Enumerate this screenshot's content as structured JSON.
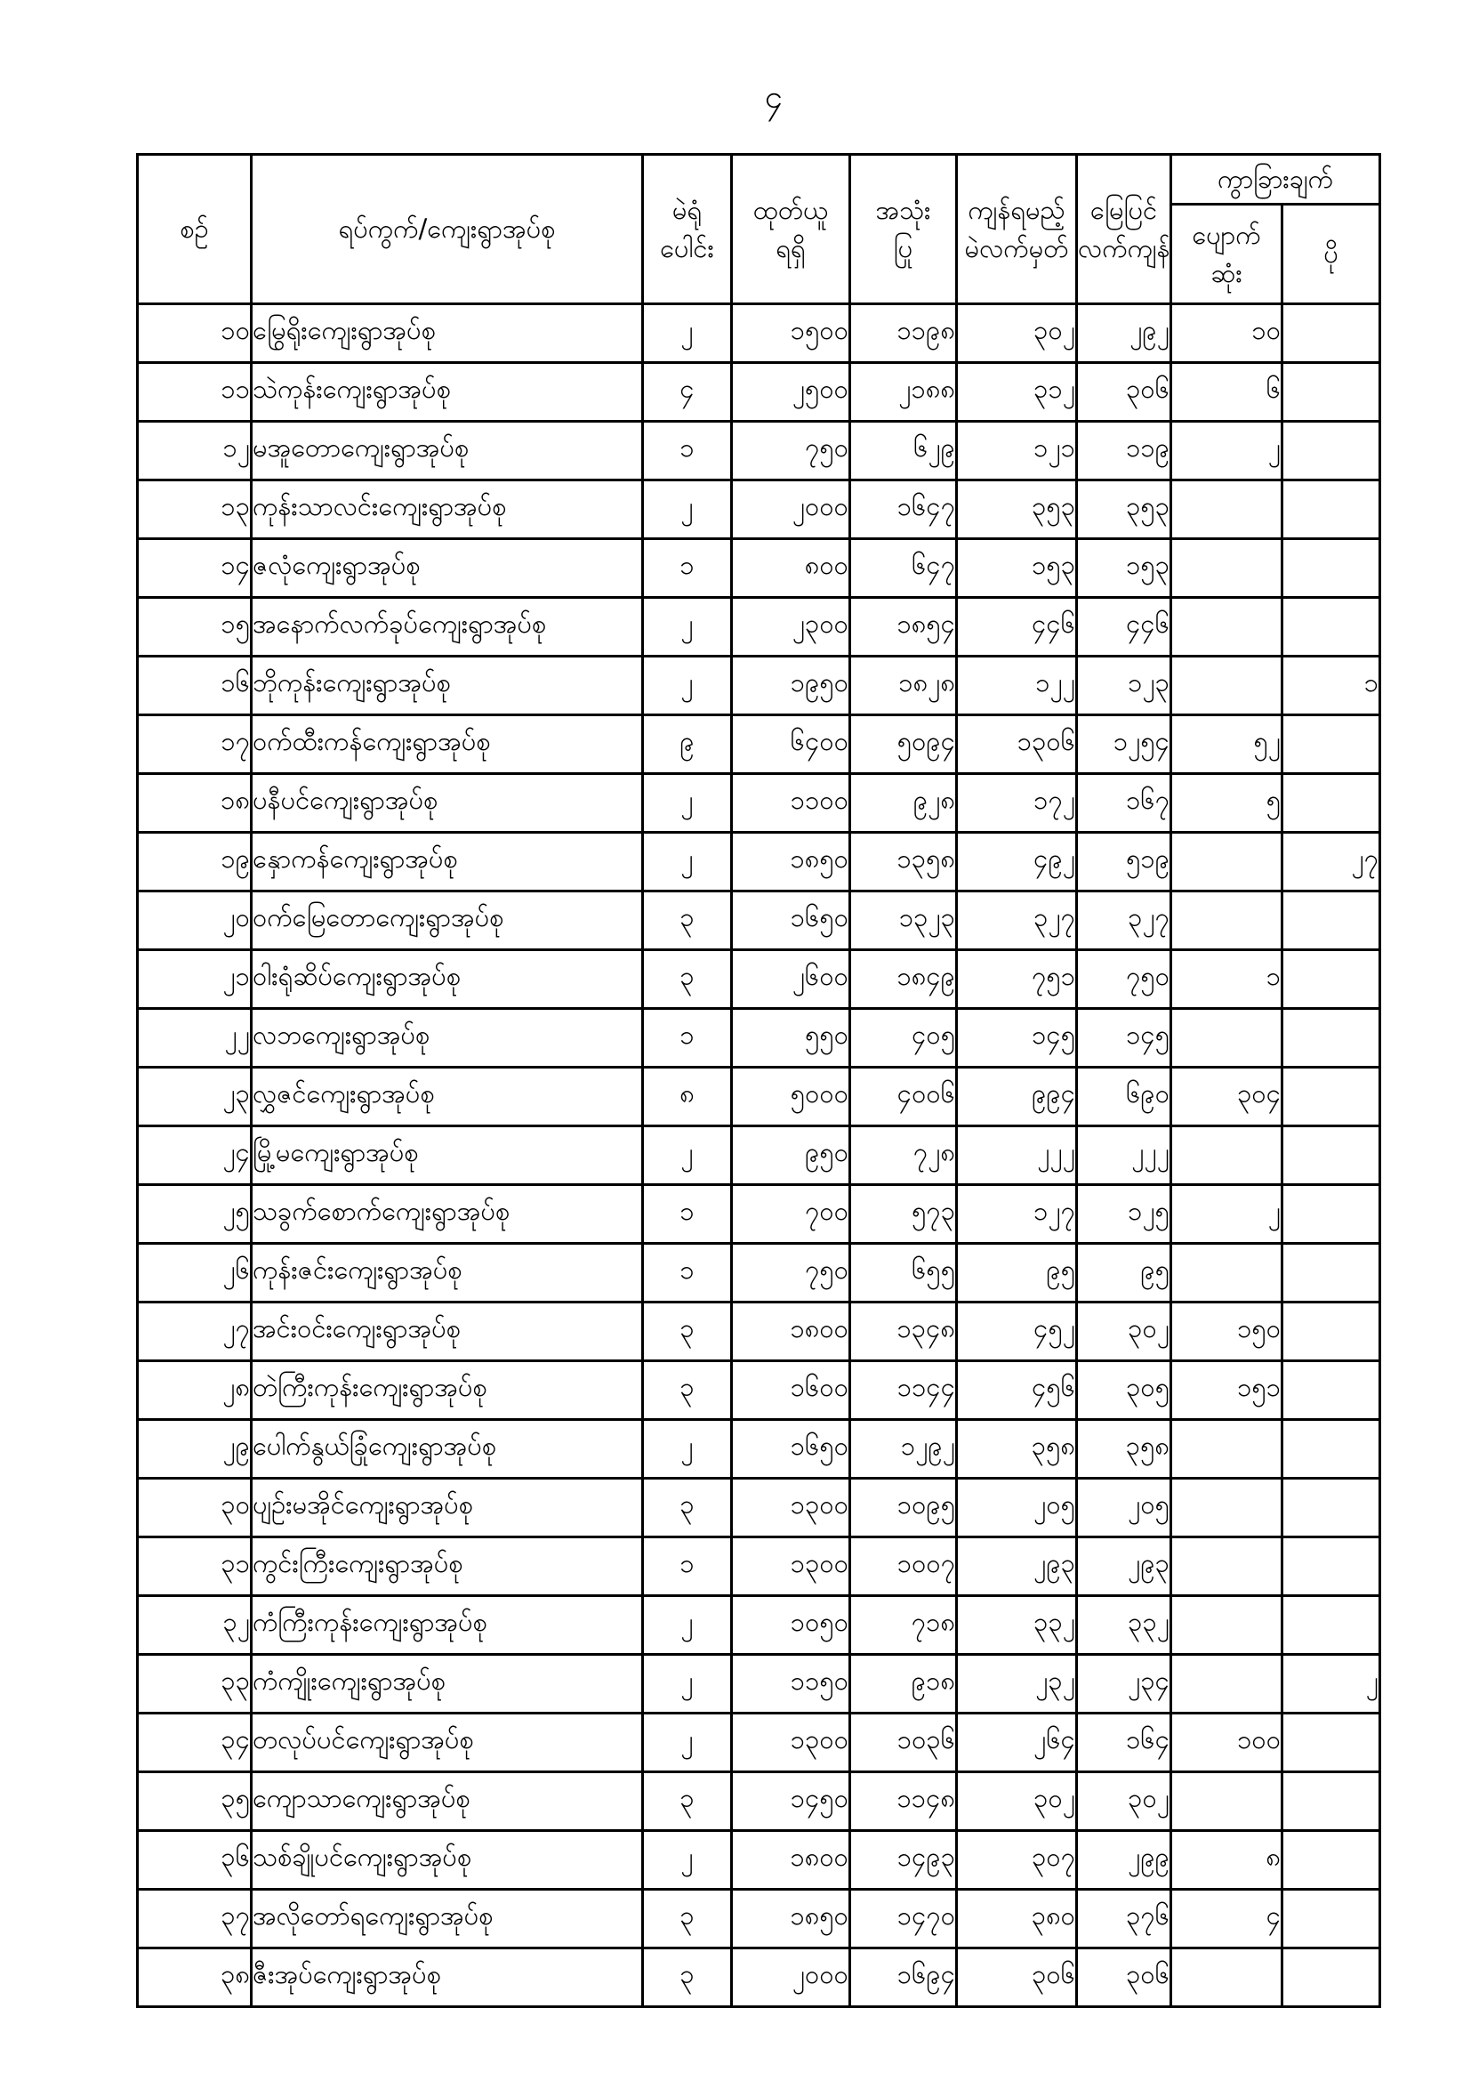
{
  "page_number": "၄",
  "table": {
    "header": {
      "serial": "စဉ်",
      "ward_village": "ရပ်ကွက်/ကျေးရွာအုပ်စု",
      "polling_stations_total": "မဲရုံ\nပေါင်း",
      "ballots_received": "ထုတ်ယူ\nရရှိ",
      "ballots_used": "အသုံး\nပြု",
      "ballots_should_remain": "ကျန်ရမည့်\nမဲလက်မှတ်",
      "ground_balance": "မြေပြင်\nလက်ကျန်",
      "difference": "ကွာခြားချက်",
      "difference_lost": "ပျောက်\nဆုံး",
      "difference_extra": "ပို"
    },
    "rows": [
      {
        "serial": "၁၀",
        "name": "မြွေရိုးကျေးရွာအုပ်စု",
        "stations": "၂",
        "received": "၁၅၀၀",
        "used": "၁၁၉၈",
        "should_remain": "၃၀၂",
        "ground": "၂၉၂",
        "lost": "၁၀",
        "extra": ""
      },
      {
        "serial": "၁၁",
        "name": "သဲကုန်းကျေးရွာအုပ်စု",
        "stations": "၄",
        "received": "၂၅၀၀",
        "used": "၂၁၈၈",
        "should_remain": "၃၁၂",
        "ground": "၃၀၆",
        "lost": "၆",
        "extra": ""
      },
      {
        "serial": "၁၂",
        "name": "မအူတောကျေးရွာအုပ်စု",
        "stations": "၁",
        "received": "၇၅၀",
        "used": "၆၂၉",
        "should_remain": "၁၂၁",
        "ground": "၁၁၉",
        "lost": "၂",
        "extra": ""
      },
      {
        "serial": "၁၃",
        "name": "ကုန်းသာလင်းကျေးရွာအုပ်စု",
        "stations": "၂",
        "received": "၂၀၀၀",
        "used": "၁၆၄၇",
        "should_remain": "၃၅၃",
        "ground": "၃၅၃",
        "lost": "",
        "extra": ""
      },
      {
        "serial": "၁၄",
        "name": "ဇလုံကျေးရွာအုပ်စု",
        "stations": "၁",
        "received": "၈၀၀",
        "used": "၆၄၇",
        "should_remain": "၁၅၃",
        "ground": "၁၅၃",
        "lost": "",
        "extra": ""
      },
      {
        "serial": "၁၅",
        "name": "အနောက်လက်ခုပ်ကျေးရွာအုပ်စု",
        "stations": "၂",
        "received": "၂၃၀၀",
        "used": "၁၈၅၄",
        "should_remain": "၄၄၆",
        "ground": "၄၄၆",
        "lost": "",
        "extra": ""
      },
      {
        "serial": "၁၆",
        "name": "ဘိုကုန်းကျေးရွာအုပ်စု",
        "stations": "၂",
        "received": "၁၉၅၀",
        "used": "၁၈၂၈",
        "should_remain": "၁၂၂",
        "ground": "၁၂၃",
        "lost": "",
        "extra": "၁"
      },
      {
        "serial": "၁၇",
        "name": "ဝက်ထီးကန်ကျေးရွာအုပ်စု",
        "stations": "၉",
        "received": "၆၄၀၀",
        "used": "၅၀၉၄",
        "should_remain": "၁၃၀၆",
        "ground": "၁၂၅၄",
        "lost": "၅၂",
        "extra": ""
      },
      {
        "serial": "၁၈",
        "name": "ပနီပင်ကျေးရွာအုပ်စု",
        "stations": "၂",
        "received": "၁၁၀၀",
        "used": "၉၂၈",
        "should_remain": "၁၇၂",
        "ground": "၁၆၇",
        "lost": "၅",
        "extra": ""
      },
      {
        "serial": "၁၉",
        "name": "နှောကန်ကျေးရွာအုပ်စု",
        "stations": "၂",
        "received": "၁၈၅၀",
        "used": "၁၃၅၈",
        "should_remain": "၄၉၂",
        "ground": "၅၁၉",
        "lost": "",
        "extra": "၂၇"
      },
      {
        "serial": "၂၀",
        "name": "ဝက်မြေတောကျေးရွာအုပ်စု",
        "stations": "၃",
        "received": "၁၆၅၀",
        "used": "၁၃၂၃",
        "should_remain": "၃၂၇",
        "ground": "၃၂၇",
        "lost": "",
        "extra": ""
      },
      {
        "serial": "၂၁",
        "name": "ဝါးရုံဆိပ်ကျေးရွာအုပ်စု",
        "stations": "၃",
        "received": "၂၆၀၀",
        "used": "၁၈၄၉",
        "should_remain": "၇၅၁",
        "ground": "၇၅၀",
        "lost": "၁",
        "extra": ""
      },
      {
        "serial": "၂၂",
        "name": "လဘကျေးရွာအုပ်စု",
        "stations": "၁",
        "received": "၅၅၀",
        "used": "၄၀၅",
        "should_remain": "၁၄၅",
        "ground": "၁၄၅",
        "lost": "",
        "extra": ""
      },
      {
        "serial": "၂၃",
        "name": "လွှဇင်ကျေးရွာအုပ်စု",
        "stations": "၈",
        "received": "၅၀၀၀",
        "used": "၄၀၀၆",
        "should_remain": "၉၉၄",
        "ground": "၆၉၀",
        "lost": "၃၀၄",
        "extra": ""
      },
      {
        "serial": "၂၄",
        "name": "မြို့မကျေးရွာအုပ်စု",
        "stations": "၂",
        "received": "၉၅၀",
        "used": "၇၂၈",
        "should_remain": "၂၂၂",
        "ground": "၂၂၂",
        "lost": "",
        "extra": ""
      },
      {
        "serial": "၂၅",
        "name": "သခွက်စောက်ကျေးရွာအုပ်စု",
        "stations": "၁",
        "received": "၇၀၀",
        "used": "၅၇၃",
        "should_remain": "၁၂၇",
        "ground": "၁၂၅",
        "lost": "၂",
        "extra": ""
      },
      {
        "serial": "၂၆",
        "name": "ကုန်းဇင်းကျေးရွာအုပ်စု",
        "stations": "၁",
        "received": "၇၅၀",
        "used": "၆၅၅",
        "should_remain": "၉၅",
        "ground": "၉၅",
        "lost": "",
        "extra": ""
      },
      {
        "serial": "၂၇",
        "name": "အင်းဝင်းကျေးရွာအုပ်စု",
        "stations": "၃",
        "received": "၁၈၀၀",
        "used": "၁၃၄၈",
        "should_remain": "၄၅၂",
        "ground": "၃၀၂",
        "lost": "၁၅၀",
        "extra": ""
      },
      {
        "serial": "၂၈",
        "name": "တဲကြီးကုန်းကျေးရွာအုပ်စု",
        "stations": "၃",
        "received": "၁၆၀၀",
        "used": "၁၁၄၄",
        "should_remain": "၄၅၆",
        "ground": "၃၀၅",
        "lost": "၁၅၁",
        "extra": ""
      },
      {
        "serial": "၂၉",
        "name": "ပေါက်နွယ်ခြုံကျေးရွာအုပ်စု",
        "stations": "၂",
        "received": "၁၆၅၀",
        "used": "၁၂၉၂",
        "should_remain": "၃၅၈",
        "ground": "၃၅၈",
        "lost": "",
        "extra": ""
      },
      {
        "serial": "၃၀",
        "name": "ပျဉ်းမအိုင်ကျေးရွာအုပ်စု",
        "stations": "၃",
        "received": "၁၃၀၀",
        "used": "၁၀၉၅",
        "should_remain": "၂၀၅",
        "ground": "၂၀၅",
        "lost": "",
        "extra": ""
      },
      {
        "serial": "၃၁",
        "name": "ကွင်းကြီးကျေးရွာအုပ်စု",
        "stations": "၁",
        "received": "၁၃၀၀",
        "used": "၁၀၀၇",
        "should_remain": "၂၉၃",
        "ground": "၂၉၃",
        "lost": "",
        "extra": ""
      },
      {
        "serial": "၃၂",
        "name": "ကံကြီးကုန်းကျေးရွာအုပ်စု",
        "stations": "၂",
        "received": "၁၀၅၀",
        "used": "၇၁၈",
        "should_remain": "၃၃၂",
        "ground": "၃၃၂",
        "lost": "",
        "extra": ""
      },
      {
        "serial": "၃၃",
        "name": "ကံကျိုးကျေးရွာအုပ်စု",
        "stations": "၂",
        "received": "၁၁၅၀",
        "used": "၉၁၈",
        "should_remain": "၂၃၂",
        "ground": "၂၃၄",
        "lost": "",
        "extra": "၂"
      },
      {
        "serial": "၃၄",
        "name": "တလုပ်ပင်ကျေးရွာအုပ်စု",
        "stations": "၂",
        "received": "၁၃၀၀",
        "used": "၁၀၃၆",
        "should_remain": "၂၆၄",
        "ground": "၁၆၄",
        "lost": "၁၀၀",
        "extra": ""
      },
      {
        "serial": "၃၅",
        "name": "ကျောသာကျေးရွာအုပ်စု",
        "stations": "၃",
        "received": "၁၄၅၀",
        "used": "၁၁၄၈",
        "should_remain": "၃၀၂",
        "ground": "၃၀၂",
        "lost": "",
        "extra": ""
      },
      {
        "serial": "၃၆",
        "name": "သစ်ချိုပင်ကျေးရွာအုပ်စု",
        "stations": "၂",
        "received": "၁၈၀၀",
        "used": "၁၄၉၃",
        "should_remain": "၃၀၇",
        "ground": "၂၉၉",
        "lost": "၈",
        "extra": ""
      },
      {
        "serial": "၃၇",
        "name": "အလိုတော်ရကျေးရွာအုပ်စု",
        "stations": "၃",
        "received": "၁၈၅၀",
        "used": "၁၄၇၀",
        "should_remain": "၃၈၀",
        "ground": "၃၇၆",
        "lost": "၄",
        "extra": ""
      },
      {
        "serial": "၃၈",
        "name": "ဇီးအုပ်ကျေးရွာအုပ်စု",
        "stations": "၃",
        "received": "၂၀၀၀",
        "used": "၁၆၉၄",
        "should_remain": "၃၀၆",
        "ground": "၃၀၆",
        "lost": "",
        "extra": ""
      }
    ]
  }
}
